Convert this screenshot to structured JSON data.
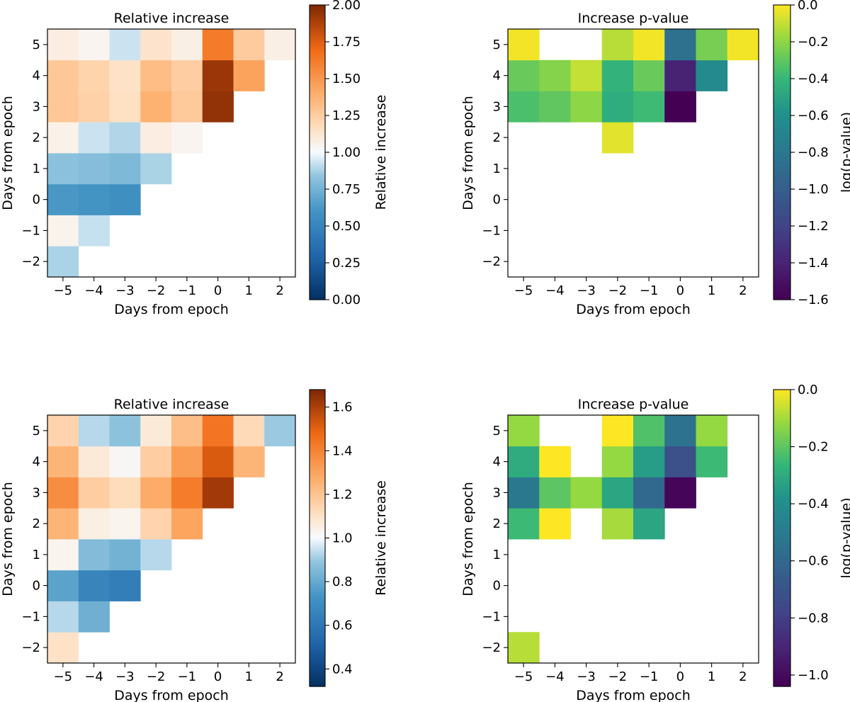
{
  "chart_data": [
    {
      "id": "top-left",
      "type": "heatmap",
      "title": "Relative increase",
      "xlabel": "Days from epoch",
      "ylabel": "Days from epoch",
      "x": [
        -5,
        -4,
        -3,
        -2,
        -1,
        0,
        1,
        2
      ],
      "y": [
        -2,
        -1,
        0,
        1,
        2,
        3,
        4,
        5
      ],
      "x_tick_labels": [
        "−5",
        "−4",
        "−3",
        "−2",
        "−1",
        "0",
        "1",
        "2"
      ],
      "y_tick_labels": [
        "−2",
        "−1",
        "0",
        "1",
        "2",
        "3",
        "4",
        "5"
      ],
      "colormap": "RdBu_r-like (blue below 1, orange/brown above 1)",
      "colorbar_label": "Relative increase",
      "clim": [
        0.0,
        2.0
      ],
      "colorbar_ticks": [
        0.0,
        0.25,
        0.5,
        0.75,
        1.0,
        1.25,
        1.5,
        1.75,
        2.0
      ],
      "colorbar_tick_labels": [
        "0.00",
        "0.25",
        "0.50",
        "0.75",
        "1.00",
        "1.25",
        "1.50",
        "1.75",
        "2.00"
      ],
      "z": [
        [
          0.88,
          null,
          null,
          null,
          null,
          null,
          null,
          null
        ],
        [
          1.05,
          0.92,
          null,
          null,
          null,
          null,
          null,
          null
        ],
        [
          0.62,
          0.6,
          0.57,
          null,
          null,
          null,
          null,
          null
        ],
        [
          0.82,
          0.8,
          0.78,
          0.88,
          null,
          null,
          null,
          null
        ],
        [
          1.06,
          0.93,
          0.89,
          1.08,
          1.04,
          null,
          null,
          null
        ],
        [
          1.28,
          1.23,
          1.16,
          1.38,
          1.27,
          1.95,
          null,
          null
        ],
        [
          1.28,
          1.22,
          1.15,
          1.33,
          1.25,
          1.93,
          1.45,
          null
        ],
        [
          1.08,
          1.04,
          0.93,
          1.14,
          1.07,
          1.62,
          1.26,
          1.07
        ]
      ]
    },
    {
      "id": "top-right",
      "type": "heatmap",
      "title": "Increase p-value",
      "xlabel": "Days from epoch",
      "ylabel": "Days from epoch",
      "x": [
        -5,
        -4,
        -3,
        -2,
        -1,
        0,
        1,
        2
      ],
      "y": [
        -2,
        -1,
        0,
        1,
        2,
        3,
        4,
        5
      ],
      "x_tick_labels": [
        "−5",
        "−4",
        "−3",
        "−2",
        "−1",
        "0",
        "1",
        "2"
      ],
      "y_tick_labels": [
        "−2",
        "−1",
        "0",
        "1",
        "2",
        "3",
        "4",
        "5"
      ],
      "colormap": "viridis",
      "colorbar_label": "log(p-value)",
      "clim": [
        -1.6,
        0.0
      ],
      "colorbar_ticks": [
        -1.6,
        -1.4,
        -1.2,
        -1.0,
        -0.8,
        -0.6,
        -0.4,
        -0.2,
        0.0
      ],
      "colorbar_tick_labels": [
        "−1.6",
        "−1.4",
        "−1.2",
        "−1.0",
        "−0.8",
        "−0.6",
        "−0.4",
        "−0.2",
        "0.0"
      ],
      "z": [
        [
          null,
          null,
          null,
          null,
          null,
          null,
          null,
          null
        ],
        [
          null,
          null,
          null,
          null,
          null,
          null,
          null,
          null
        ],
        [
          null,
          null,
          null,
          null,
          null,
          null,
          null,
          null
        ],
        [
          null,
          null,
          null,
          null,
          null,
          null,
          null,
          null
        ],
        [
          null,
          null,
          null,
          -0.05,
          null,
          null,
          null,
          null
        ],
        [
          -0.35,
          -0.3,
          -0.2,
          -0.45,
          -0.38,
          -1.62,
          null,
          null
        ],
        [
          -0.28,
          -0.22,
          -0.1,
          -0.42,
          -0.28,
          -1.4,
          -0.65,
          null
        ],
        [
          -0.02,
          null,
          null,
          -0.12,
          -0.02,
          -0.85,
          -0.25,
          -0.02
        ]
      ]
    },
    {
      "id": "bottom-left",
      "type": "heatmap",
      "title": "Relative increase",
      "xlabel": "Days from epoch",
      "ylabel": "Days from epoch",
      "x": [
        -5,
        -4,
        -3,
        -2,
        -1,
        0,
        1,
        2
      ],
      "y": [
        -2,
        -1,
        0,
        1,
        2,
        3,
        4,
        5
      ],
      "x_tick_labels": [
        "−5",
        "−4",
        "−3",
        "−2",
        "−1",
        "0",
        "1",
        "2"
      ],
      "y_tick_labels": [
        "−2",
        "−1",
        "0",
        "1",
        "2",
        "3",
        "4",
        "5"
      ],
      "colormap": "RdBu_r-like (blue below 1, orange/brown above 1)",
      "colorbar_label": "Relative increase",
      "clim": [
        0.32,
        1.68
      ],
      "colorbar_ticks": [
        0.4,
        0.6,
        0.8,
        1.0,
        1.2,
        1.4,
        1.6
      ],
      "colorbar_tick_labels": [
        "0.4",
        "0.6",
        "0.8",
        "1.0",
        "1.2",
        "1.4",
        "1.6"
      ],
      "z": [
        [
          1.1,
          null,
          null,
          null,
          null,
          null,
          null,
          null
        ],
        [
          0.93,
          0.82,
          null,
          null,
          null,
          null,
          null,
          null
        ],
        [
          0.78,
          0.66,
          0.63,
          null,
          null,
          null,
          null,
          null
        ],
        [
          1.03,
          0.86,
          0.83,
          0.93,
          null,
          null,
          null,
          null
        ],
        [
          1.25,
          1.05,
          1.03,
          1.15,
          1.3,
          null,
          null,
          null
        ],
        [
          1.37,
          1.17,
          1.12,
          1.28,
          1.42,
          1.62,
          null,
          null
        ],
        [
          1.25,
          1.07,
          1.02,
          1.17,
          1.32,
          1.52,
          1.25,
          null
        ],
        [
          1.15,
          0.93,
          0.88,
          1.07,
          1.22,
          1.44,
          1.13,
          0.9
        ]
      ]
    },
    {
      "id": "bottom-right",
      "type": "heatmap",
      "title": "Increase p-value",
      "xlabel": "Days from epoch",
      "ylabel": "Days from epoch",
      "x": [
        -5,
        -4,
        -3,
        -2,
        -1,
        0,
        1,
        2
      ],
      "y": [
        -2,
        -1,
        0,
        1,
        2,
        3,
        4,
        5
      ],
      "x_tick_labels": [
        "−5",
        "−4",
        "−3",
        "−2",
        "−1",
        "0",
        "1",
        "2"
      ],
      "y_tick_labels": [
        "−2",
        "−1",
        "0",
        "1",
        "2",
        "3",
        "4",
        "5"
      ],
      "colormap": "viridis",
      "colorbar_label": "log(p-value)",
      "clim": [
        -1.04,
        0.0
      ],
      "colorbar_ticks": [
        -1.0,
        -0.8,
        -0.6,
        -0.4,
        -0.2,
        0.0
      ],
      "colorbar_tick_labels": [
        "−1.0",
        "−0.8",
        "−0.6",
        "−0.4",
        "−0.2",
        "0.0"
      ],
      "z": [
        [
          -0.08,
          null,
          null,
          null,
          null,
          null,
          null,
          null
        ],
        [
          null,
          null,
          null,
          null,
          null,
          null,
          null,
          null
        ],
        [
          null,
          null,
          null,
          null,
          null,
          null,
          null,
          null
        ],
        [
          null,
          null,
          null,
          null,
          null,
          null,
          null,
          null
        ],
        [
          -0.25,
          0.0,
          null,
          -0.1,
          -0.32,
          null,
          null,
          null
        ],
        [
          -0.52,
          -0.2,
          -0.12,
          -0.32,
          -0.6,
          -1.02,
          null,
          null
        ],
        [
          -0.3,
          0.0,
          null,
          -0.12,
          -0.35,
          -0.72,
          -0.25,
          null
        ],
        [
          -0.12,
          null,
          null,
          0.0,
          -0.22,
          -0.55,
          -0.12,
          null
        ]
      ]
    }
  ]
}
